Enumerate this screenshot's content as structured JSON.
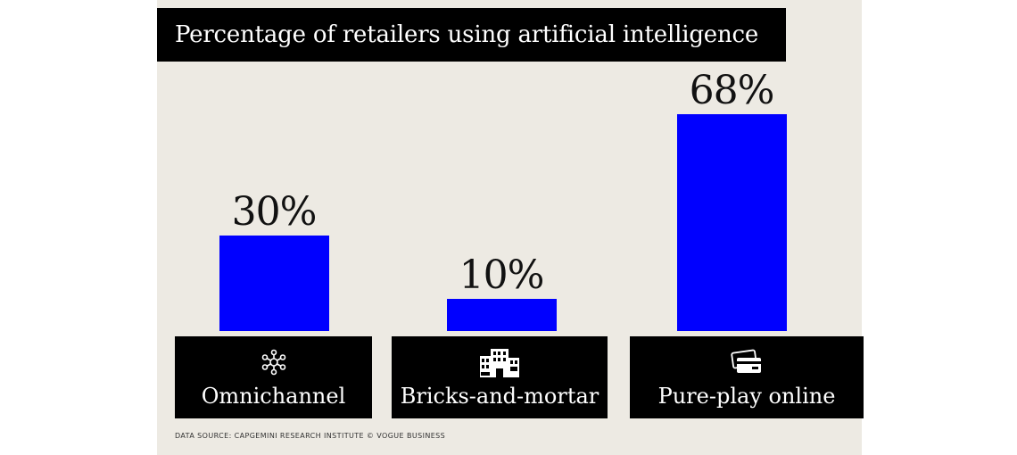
{
  "title": "Percentage of retailers using artificial intelligence",
  "source": "DATA SOURCE:  CAPGEMINI RESEARCH INSTITUTE  © VOGUE BUSINESS",
  "colors": {
    "bar": "#0000ff",
    "background": "#edeae3",
    "label_box": "#000000"
  },
  "categories_display": [
    {
      "label": "Omnichannel",
      "value_label": "30%",
      "icon": "network-hub-icon"
    },
    {
      "label": "Bricks-and-mortar",
      "value_label": "10%",
      "icon": "storefront-icon"
    },
    {
      "label": "Pure-play online",
      "value_label": "68%",
      "icon": "credit-cards-icon"
    }
  ],
  "chart_data": {
    "type": "bar",
    "title": "Percentage of retailers using artificial intelligence",
    "categories": [
      "Omnichannel",
      "Bricks-and-mortar",
      "Pure-play online"
    ],
    "values": [
      30,
      10,
      68
    ],
    "data_labels": [
      "30%",
      "10%",
      "68%"
    ],
    "unit": "%",
    "ylim": [
      0,
      68
    ],
    "grid": false,
    "legend": "none"
  }
}
